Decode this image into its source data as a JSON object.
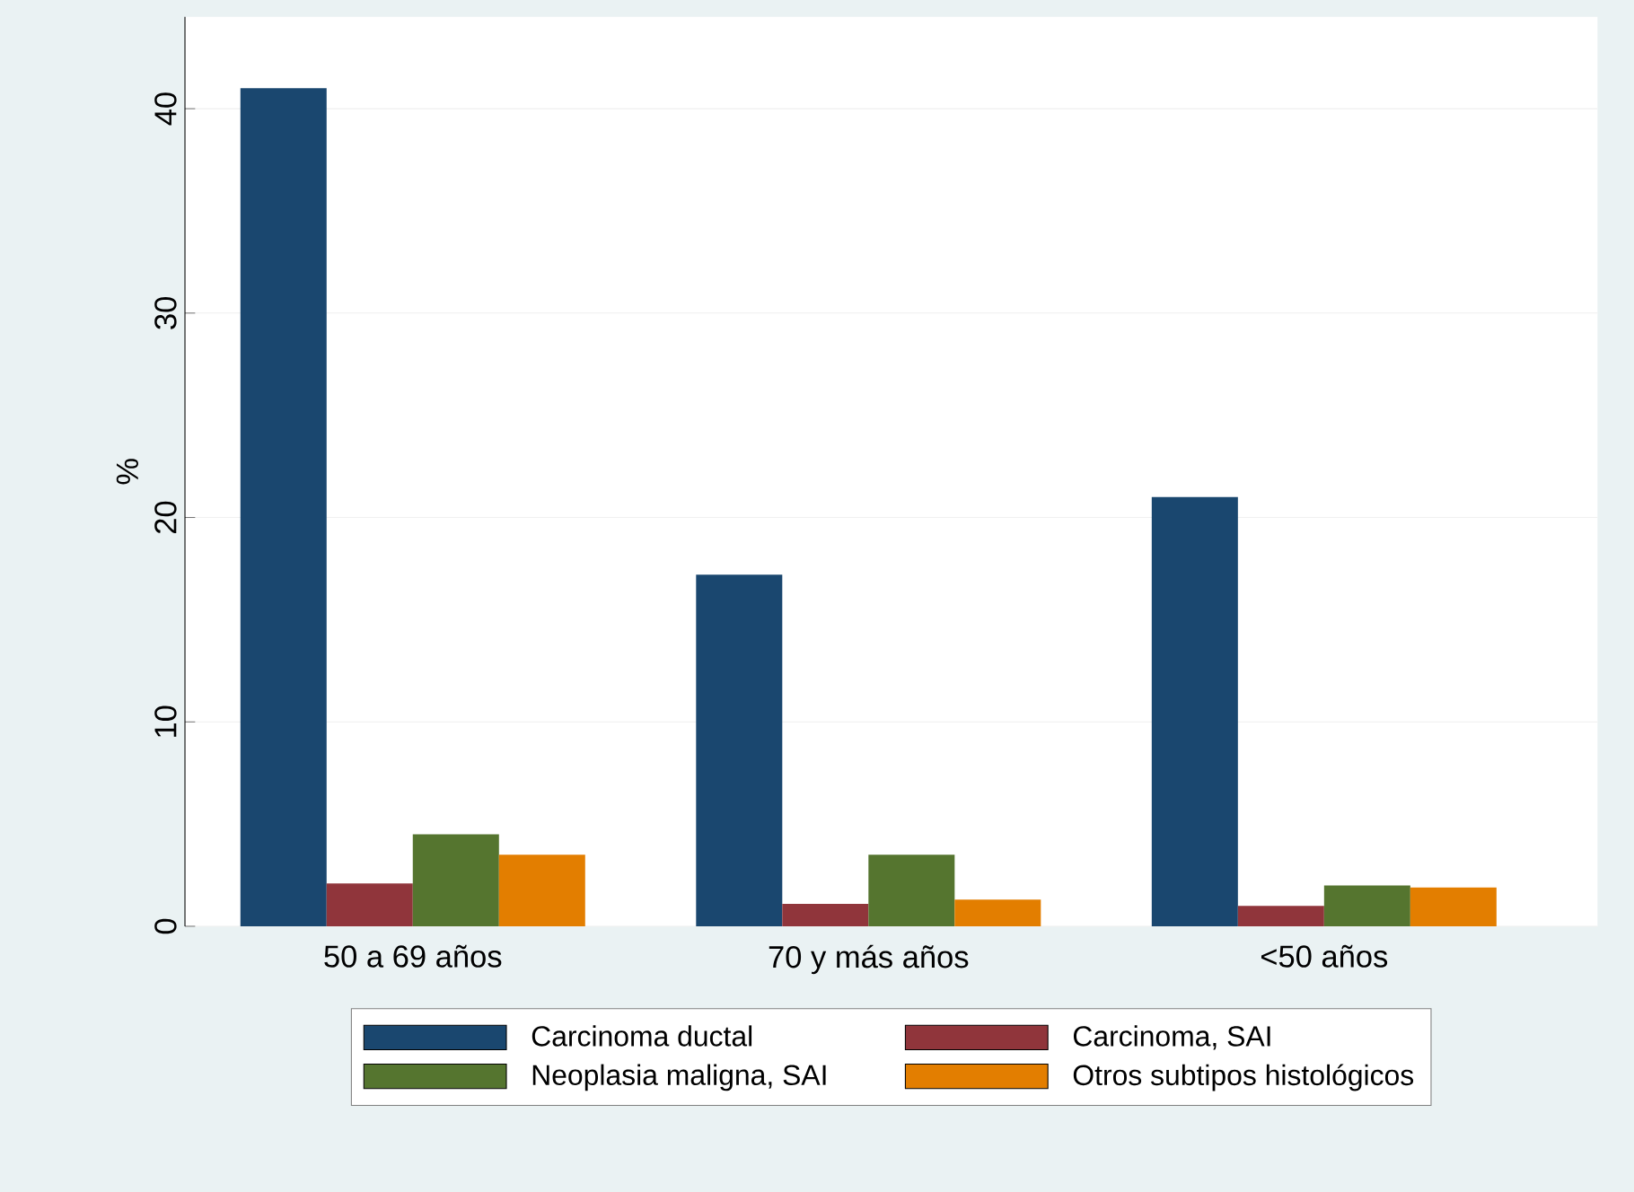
{
  "chart_data": {
    "type": "bar",
    "categories": [
      "50 a 69 años",
      "70 y más años",
      "<50 años"
    ],
    "ylabel": "%",
    "ylim": [
      0,
      44.5
    ],
    "yticks": [
      0,
      10,
      20,
      30,
      40
    ],
    "grid": "y",
    "legend": "bottom",
    "series": [
      {
        "name": "Carcinoma ductal",
        "color": "#1a476f",
        "values": [
          41.0,
          17.2,
          21.0
        ]
      },
      {
        "name": "Carcinoma, SAI",
        "color": "#90353b",
        "values": [
          2.1,
          1.1,
          1.0
        ]
      },
      {
        "name": "Neoplasia maligna, SAI",
        "color": "#55752f",
        "values": [
          4.5,
          3.5,
          2.0
        ]
      },
      {
        "name": "Otros subtipos histológicos",
        "color": "#e37e00",
        "values": [
          3.5,
          1.3,
          1.9
        ]
      }
    ]
  }
}
